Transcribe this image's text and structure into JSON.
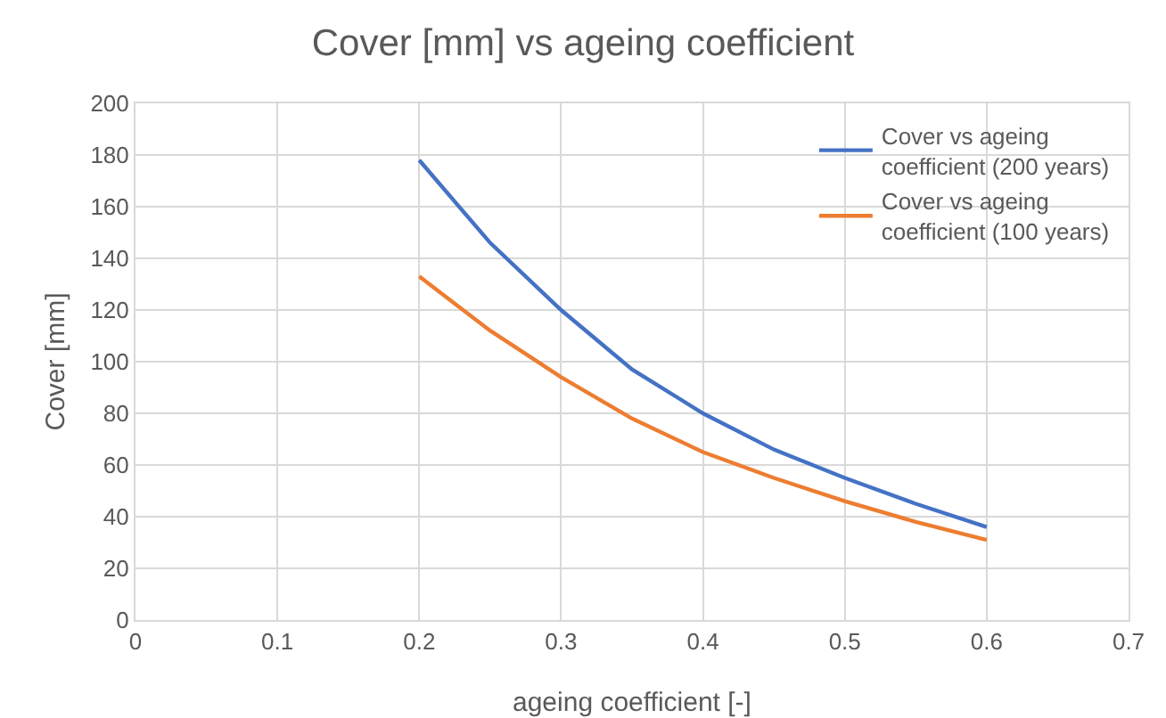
{
  "chart_data": {
    "type": "line",
    "title": "Cover [mm] vs ageing coefficient",
    "xlabel": "ageing coefficient [-]",
    "ylabel": "Cover [mm]",
    "x": [
      0.2,
      0.25,
      0.3,
      0.35,
      0.4,
      0.45,
      0.5,
      0.55,
      0.6
    ],
    "series": [
      {
        "name": "Cover vs ageing coefficient (200 years)",
        "color": "#4472c4",
        "values": [
          178,
          146,
          120,
          97,
          80,
          66,
          55,
          45,
          36
        ]
      },
      {
        "name": "Cover vs ageing coefficient (100 years)",
        "color": "#ed7d31",
        "values": [
          133,
          112,
          94,
          78,
          65,
          55,
          46,
          38,
          31
        ]
      }
    ],
    "xlim": [
      0,
      0.7
    ],
    "xticks": [
      0,
      0.1,
      0.2,
      0.3,
      0.4,
      0.5,
      0.6,
      0.7
    ],
    "ylim": [
      0,
      200
    ],
    "yticks": [
      0,
      20,
      40,
      60,
      80,
      100,
      120,
      140,
      160,
      180,
      200
    ],
    "grid": true,
    "legend": "top right",
    "marker": "none",
    "line_style": "solid"
  }
}
